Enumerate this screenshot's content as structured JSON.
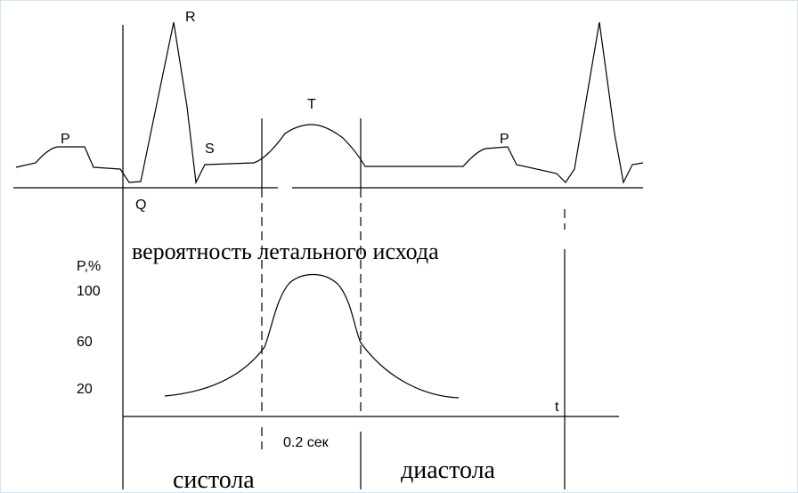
{
  "ecg_labels": {
    "r": "R",
    "p1": "P",
    "s": "S",
    "t": "T",
    "p2": "P",
    "q": "Q"
  },
  "title": "вероятность летального исхода",
  "axis_labels": {
    "y_axis": "P,%",
    "y100": "100",
    "y60": "60",
    "y20": "20",
    "t": "t"
  },
  "interval": "0.2 сек",
  "phases": {
    "systole": "систола",
    "diastole": "диастола"
  }
}
